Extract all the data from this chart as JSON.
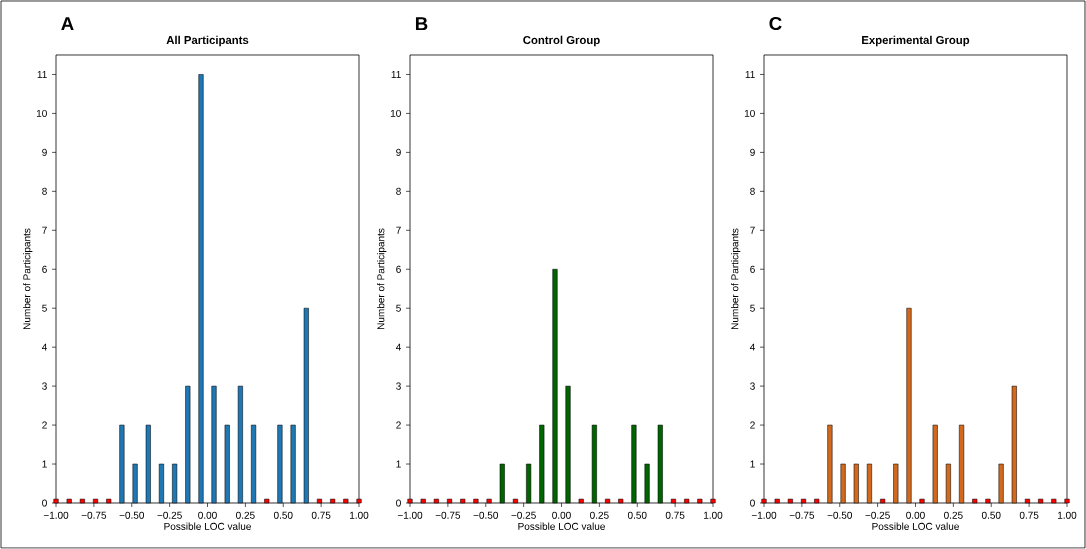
{
  "chart_data": [
    {
      "type": "bar",
      "title": "All Participants",
      "xlabel": "Possible LOC value",
      "ylabel": "Number of Participants",
      "annotations": [
        "A"
      ],
      "x": [
        -1.0,
        -0.913,
        -0.826,
        -0.739,
        -0.652,
        -0.565,
        -0.478,
        -0.391,
        -0.304,
        -0.217,
        -0.13,
        -0.043,
        0.043,
        0.13,
        0.217,
        0.304,
        0.391,
        0.478,
        0.565,
        0.652,
        0.739,
        0.826,
        0.913,
        1.0
      ],
      "series": [
        {
          "color": "#1f77b4",
          "values": [
            null,
            null,
            null,
            null,
            null,
            2,
            1,
            2,
            1,
            1,
            3,
            11,
            3,
            2,
            3,
            2,
            null,
            2,
            2,
            5,
            null,
            null,
            null,
            null
          ]
        },
        {
          "color": "#ff0000",
          "values": [
            0.1,
            0.1,
            0.1,
            0.1,
            0.1,
            null,
            null,
            null,
            null,
            null,
            null,
            null,
            null,
            null,
            null,
            null,
            0.1,
            null,
            null,
            null,
            0.1,
            0.1,
            0.1,
            0.1
          ]
        }
      ],
      "xlim": [
        -1,
        1
      ],
      "ylim": [
        0,
        11.5
      ],
      "xticks": [
        {
          "value": -1,
          "label": "−1.00"
        },
        {
          "value": -0.75,
          "label": "−0.75"
        },
        {
          "value": -0.5,
          "label": "−0.50"
        },
        {
          "value": -0.25,
          "label": "−0.25"
        },
        {
          "value": 0,
          "label": "0.00"
        },
        {
          "value": 0.25,
          "label": "0.25"
        },
        {
          "value": 0.5,
          "label": "0.50"
        },
        {
          "value": 0.75,
          "label": "0.75"
        },
        {
          "value": 1,
          "label": "1.00"
        }
      ],
      "yticks": [
        0,
        1,
        2,
        3,
        4,
        5,
        6,
        7,
        8,
        9,
        10,
        11
      ]
    },
    {
      "type": "bar",
      "title": "Control Group",
      "xlabel": "Possible LOC value",
      "ylabel": "Number of Participants",
      "annotations": [
        "B"
      ],
      "x": [
        -1.0,
        -0.913,
        -0.826,
        -0.739,
        -0.652,
        -0.565,
        -0.478,
        -0.391,
        -0.304,
        -0.217,
        -0.13,
        -0.043,
        0.043,
        0.13,
        0.217,
        0.304,
        0.391,
        0.478,
        0.565,
        0.652,
        0.739,
        0.826,
        0.913,
        1.0
      ],
      "series": [
        {
          "color": "#006400",
          "values": [
            null,
            null,
            null,
            null,
            null,
            null,
            null,
            1,
            null,
            1,
            2,
            6,
            3,
            null,
            2,
            null,
            null,
            2,
            1,
            2,
            null,
            null,
            null,
            null
          ]
        },
        {
          "color": "#ff0000",
          "values": [
            0.1,
            0.1,
            0.1,
            0.1,
            0.1,
            0.1,
            0.1,
            null,
            0.1,
            null,
            null,
            null,
            null,
            0.1,
            null,
            0.1,
            0.1,
            null,
            null,
            null,
            0.1,
            0.1,
            0.1,
            0.1
          ]
        }
      ],
      "xlim": [
        -1,
        1
      ],
      "ylim": [
        0,
        11.5
      ],
      "xticks": [
        {
          "value": -1,
          "label": "−1.00"
        },
        {
          "value": -0.75,
          "label": "−0.75"
        },
        {
          "value": -0.5,
          "label": "−0.50"
        },
        {
          "value": -0.25,
          "label": "−0.25"
        },
        {
          "value": 0,
          "label": "0.00"
        },
        {
          "value": 0.25,
          "label": "0.25"
        },
        {
          "value": 0.5,
          "label": "0.50"
        },
        {
          "value": 0.75,
          "label": "0.75"
        },
        {
          "value": 1,
          "label": "1.00"
        }
      ],
      "yticks": [
        0,
        1,
        2,
        3,
        4,
        5,
        6,
        7,
        8,
        9,
        10,
        11
      ]
    },
    {
      "type": "bar",
      "title": "Experimental Group",
      "xlabel": "Possible LOC value",
      "ylabel": "Number of Participants",
      "annotations": [
        "C"
      ],
      "x": [
        -1.0,
        -0.913,
        -0.826,
        -0.739,
        -0.652,
        -0.565,
        -0.478,
        -0.391,
        -0.304,
        -0.217,
        -0.13,
        -0.043,
        0.043,
        0.13,
        0.217,
        0.304,
        0.391,
        0.478,
        0.565,
        0.652,
        0.739,
        0.826,
        0.913,
        1.0
      ],
      "series": [
        {
          "color": "#d2691e",
          "values": [
            null,
            null,
            null,
            null,
            null,
            2,
            1,
            1,
            1,
            null,
            1,
            5,
            null,
            2,
            1,
            2,
            null,
            null,
            1,
            3,
            null,
            null,
            null,
            null
          ]
        },
        {
          "color": "#ff0000",
          "values": [
            0.1,
            0.1,
            0.1,
            0.1,
            0.1,
            null,
            null,
            null,
            null,
            0.1,
            null,
            null,
            0.1,
            null,
            null,
            null,
            0.1,
            0.1,
            null,
            null,
            0.1,
            0.1,
            0.1,
            0.1
          ]
        }
      ],
      "xlim": [
        -1,
        1
      ],
      "ylim": [
        0,
        11.5
      ],
      "xticks": [
        {
          "value": -1,
          "label": "−1.00"
        },
        {
          "value": -0.75,
          "label": "−0.75"
        },
        {
          "value": -0.5,
          "label": "−0.50"
        },
        {
          "value": -0.25,
          "label": "−0.25"
        },
        {
          "value": 0,
          "label": "0.00"
        },
        {
          "value": 0.25,
          "label": "0.25"
        },
        {
          "value": 0.5,
          "label": "0.50"
        },
        {
          "value": 0.75,
          "label": "0.75"
        },
        {
          "value": 1,
          "label": "1.00"
        }
      ],
      "yticks": [
        0,
        1,
        2,
        3,
        4,
        5,
        6,
        7,
        8,
        9,
        10,
        11
      ]
    }
  ]
}
